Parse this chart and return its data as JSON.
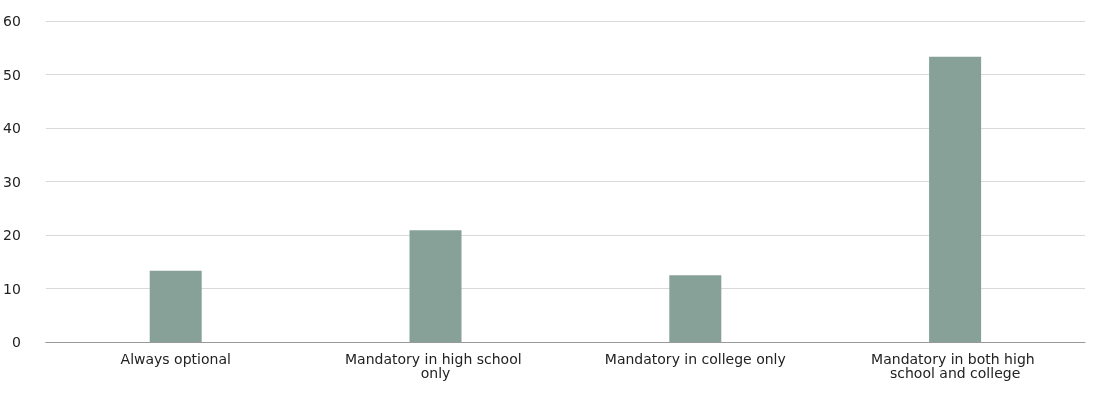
{
  "chart_data": {
    "type": "bar",
    "categories": [
      "Always optional",
      "Mandatory in high school only",
      "Mandatory in college only",
      "Mandatory in both high school and college"
    ],
    "values": [
      13.3,
      20.9,
      12.5,
      53.3
    ],
    "color": "#87a198",
    "ylim": [
      0,
      60
    ],
    "yticks": [
      0,
      10,
      20,
      30,
      40,
      50,
      60
    ],
    "grid": "y"
  }
}
